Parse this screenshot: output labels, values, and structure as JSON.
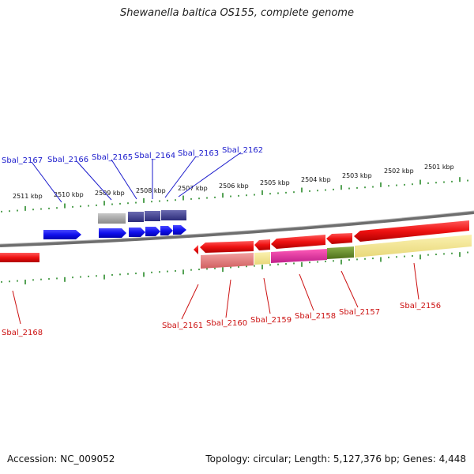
{
  "title": "Shewanella baltica OS155, complete genome",
  "accession": "Accession: NC_009052",
  "topology": "Topology: circular; Length: 5,127,376 bp; Genes: 4,448",
  "kbp_labels": [
    "2511 kbp",
    "2510 kbp",
    "2509 kbp",
    "2508 kbp",
    "2507 kbp",
    "2506 kbp",
    "2505 kbp",
    "2504 kbp",
    "2503 kbp",
    "2502 kbp",
    "2501 kbp"
  ],
  "top_genes": [
    "Sbal_2167",
    "Sbal_2166",
    "Sbal_2165",
    "Sbal_2164",
    "Sbal_2163",
    "Sbal_2162"
  ],
  "bottom_genes": [
    "Sbal_2168",
    "Sbal_2161",
    "Sbal_2160",
    "Sbal_2159",
    "Sbal_2158",
    "Sbal_2157",
    "Sbal_2156"
  ],
  "colors": {
    "forward_gene": "#1010ee",
    "reverse_gene": "#ee1111",
    "top_tick": "#2a8a2a",
    "backbone": "#7a7a7a",
    "label_blue": "#1a1acc",
    "label_red": "#cc1111"
  }
}
